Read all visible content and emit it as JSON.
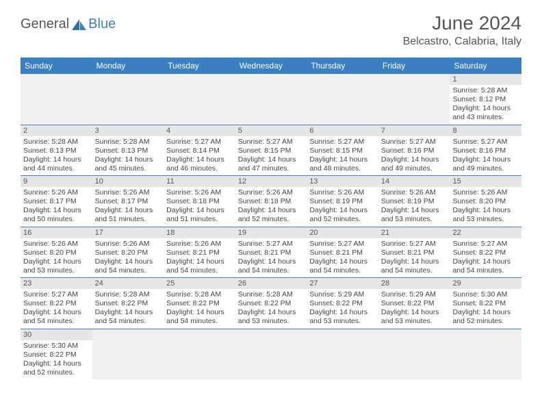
{
  "brand": {
    "part1": "General",
    "part2": "Blue"
  },
  "title": "June 2024",
  "location": "Belcastro, Calabria, Italy",
  "colors": {
    "header_bar": "#3a7fc2",
    "daynum_bg": "#e6e6e6",
    "empty_bg": "#f0f0f0",
    "text": "#444444",
    "title_text": "#555555"
  },
  "day_headers": [
    "Sunday",
    "Monday",
    "Tuesday",
    "Wednesday",
    "Thursday",
    "Friday",
    "Saturday"
  ],
  "weeks": [
    [
      null,
      null,
      null,
      null,
      null,
      null,
      {
        "n": "1",
        "sr": "5:28 AM",
        "ss": "8:12 PM",
        "dl1": "14 hours",
        "dl2": "and 43 minutes."
      }
    ],
    [
      {
        "n": "2",
        "sr": "5:28 AM",
        "ss": "8:13 PM",
        "dl1": "14 hours",
        "dl2": "and 44 minutes."
      },
      {
        "n": "3",
        "sr": "5:28 AM",
        "ss": "8:13 PM",
        "dl1": "14 hours",
        "dl2": "and 45 minutes."
      },
      {
        "n": "4",
        "sr": "5:27 AM",
        "ss": "8:14 PM",
        "dl1": "14 hours",
        "dl2": "and 46 minutes."
      },
      {
        "n": "5",
        "sr": "5:27 AM",
        "ss": "8:15 PM",
        "dl1": "14 hours",
        "dl2": "and 47 minutes."
      },
      {
        "n": "6",
        "sr": "5:27 AM",
        "ss": "8:15 PM",
        "dl1": "14 hours",
        "dl2": "and 48 minutes."
      },
      {
        "n": "7",
        "sr": "5:27 AM",
        "ss": "8:16 PM",
        "dl1": "14 hours",
        "dl2": "and 49 minutes."
      },
      {
        "n": "8",
        "sr": "5:27 AM",
        "ss": "8:16 PM",
        "dl1": "14 hours",
        "dl2": "and 49 minutes."
      }
    ],
    [
      {
        "n": "9",
        "sr": "5:26 AM",
        "ss": "8:17 PM",
        "dl1": "14 hours",
        "dl2": "and 50 minutes."
      },
      {
        "n": "10",
        "sr": "5:26 AM",
        "ss": "8:17 PM",
        "dl1": "14 hours",
        "dl2": "and 51 minutes."
      },
      {
        "n": "11",
        "sr": "5:26 AM",
        "ss": "8:18 PM",
        "dl1": "14 hours",
        "dl2": "and 51 minutes."
      },
      {
        "n": "12",
        "sr": "5:26 AM",
        "ss": "8:18 PM",
        "dl1": "14 hours",
        "dl2": "and 52 minutes."
      },
      {
        "n": "13",
        "sr": "5:26 AM",
        "ss": "8:19 PM",
        "dl1": "14 hours",
        "dl2": "and 52 minutes."
      },
      {
        "n": "14",
        "sr": "5:26 AM",
        "ss": "8:19 PM",
        "dl1": "14 hours",
        "dl2": "and 53 minutes."
      },
      {
        "n": "15",
        "sr": "5:26 AM",
        "ss": "8:20 PM",
        "dl1": "14 hours",
        "dl2": "and 53 minutes."
      }
    ],
    [
      {
        "n": "16",
        "sr": "5:26 AM",
        "ss": "8:20 PM",
        "dl1": "14 hours",
        "dl2": "and 53 minutes."
      },
      {
        "n": "17",
        "sr": "5:26 AM",
        "ss": "8:20 PM",
        "dl1": "14 hours",
        "dl2": "and 54 minutes."
      },
      {
        "n": "18",
        "sr": "5:26 AM",
        "ss": "8:21 PM",
        "dl1": "14 hours",
        "dl2": "and 54 minutes."
      },
      {
        "n": "19",
        "sr": "5:27 AM",
        "ss": "8:21 PM",
        "dl1": "14 hours",
        "dl2": "and 54 minutes."
      },
      {
        "n": "20",
        "sr": "5:27 AM",
        "ss": "8:21 PM",
        "dl1": "14 hours",
        "dl2": "and 54 minutes."
      },
      {
        "n": "21",
        "sr": "5:27 AM",
        "ss": "8:21 PM",
        "dl1": "14 hours",
        "dl2": "and 54 minutes."
      },
      {
        "n": "22",
        "sr": "5:27 AM",
        "ss": "8:22 PM",
        "dl1": "14 hours",
        "dl2": "and 54 minutes."
      }
    ],
    [
      {
        "n": "23",
        "sr": "5:27 AM",
        "ss": "8:22 PM",
        "dl1": "14 hours",
        "dl2": "and 54 minutes."
      },
      {
        "n": "24",
        "sr": "5:28 AM",
        "ss": "8:22 PM",
        "dl1": "14 hours",
        "dl2": "and 54 minutes."
      },
      {
        "n": "25",
        "sr": "5:28 AM",
        "ss": "8:22 PM",
        "dl1": "14 hours",
        "dl2": "and 54 minutes."
      },
      {
        "n": "26",
        "sr": "5:28 AM",
        "ss": "8:22 PM",
        "dl1": "14 hours",
        "dl2": "and 53 minutes."
      },
      {
        "n": "27",
        "sr": "5:29 AM",
        "ss": "8:22 PM",
        "dl1": "14 hours",
        "dl2": "and 53 minutes."
      },
      {
        "n": "28",
        "sr": "5:29 AM",
        "ss": "8:22 PM",
        "dl1": "14 hours",
        "dl2": "and 53 minutes."
      },
      {
        "n": "29",
        "sr": "5:30 AM",
        "ss": "8:22 PM",
        "dl1": "14 hours",
        "dl2": "and 52 minutes."
      }
    ],
    [
      {
        "n": "30",
        "sr": "5:30 AM",
        "ss": "8:22 PM",
        "dl1": "14 hours",
        "dl2": "and 52 minutes."
      },
      null,
      null,
      null,
      null,
      null,
      null
    ]
  ],
  "labels": {
    "sunrise_prefix": "Sunrise: ",
    "sunset_prefix": "Sunset: ",
    "daylight_prefix": "Daylight: "
  }
}
